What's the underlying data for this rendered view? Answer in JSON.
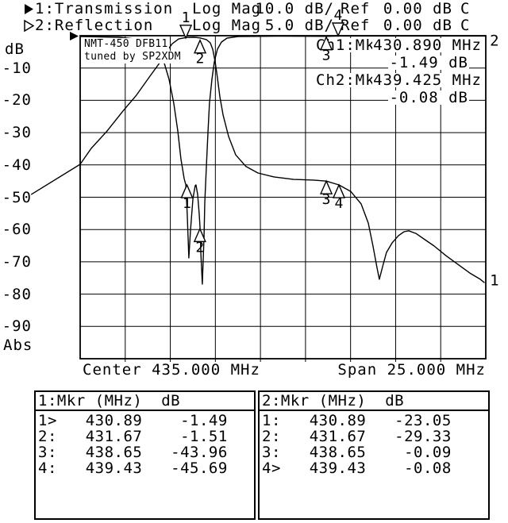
{
  "header": {
    "channels": [
      {
        "selector": "filled",
        "label": "1:Transmission",
        "format": "Log Mag",
        "scale": "10.0 dB/",
        "ref_label": "Ref",
        "ref_value": "0.00 dB",
        "cal": "C"
      },
      {
        "selector": "hollow",
        "label": "2:Reflection",
        "format": "Log Mag",
        "scale": "5.0 dB/",
        "ref_label": "Ref",
        "ref_value": "0.00 dB",
        "cal": "C"
      }
    ]
  },
  "plot": {
    "title_line1": "NMT-450 DFB11",
    "title_line2": "tuned by SP2XDM",
    "y_axis_unit": "dB",
    "y_axis_bottom_label": "Abs",
    "y_tick_labels": [
      "-10",
      "-20",
      "-30",
      "-40",
      "-50",
      "-60",
      "-70",
      "-80",
      "-90"
    ],
    "x_axis_left_label": "Center 435.000 MHz",
    "x_axis_right_label": "Span 25.000 MHz",
    "readout": {
      "rows": [
        {
          "channel": "Ch1:",
          "marker": "Mkr1",
          "frequency": "430.890 MHz",
          "value": "-1.49 dB"
        },
        {
          "channel": "Ch2:",
          "marker": "Mkr4",
          "frequency": "439.425 MHz",
          "value": "-0.08 dB"
        }
      ]
    }
  },
  "chart_data": {
    "type": "line",
    "title": "NMT-450 DFB11 tuned by SP2XDM",
    "xlabel": "Frequency (MHz), Center 435.000 MHz, Span 25.000 MHz",
    "ylabel": "dB (Ch1: 10.0 dB/div ref 0.00 dB, Ch2: 5.0 dB/div ref 0.00 dB)",
    "x_axis": {
      "center_MHz": 435.0,
      "span_MHz": 25.0,
      "min": 422.5,
      "max": 447.5
    },
    "y_axis": {
      "ch1": {
        "scale_db_per_div": 10,
        "ref_db": 0,
        "min": -100,
        "max": 0
      },
      "ch2": {
        "scale_db_per_div": 5,
        "ref_db": 0,
        "min": -50,
        "max": 0
      }
    },
    "grid": {
      "x_divisions": 9,
      "y_divisions": 10,
      "grid_on": true
    },
    "series": [
      {
        "name": "Transmission",
        "channel": 1,
        "points": [
          [
            419.5,
            -49.1
          ],
          [
            422.5,
            -39.8
          ],
          [
            423.18,
            -34.9
          ],
          [
            424.16,
            -29.5
          ],
          [
            425.14,
            -23.3
          ],
          [
            425.97,
            -18.4
          ],
          [
            426.76,
            -12.8
          ],
          [
            427.44,
            -8.1
          ],
          [
            427.83,
            -4.9
          ],
          [
            428.17,
            -2.5
          ],
          [
            428.57,
            -1.0
          ],
          [
            429.05,
            -0.55
          ],
          [
            429.54,
            -0.5
          ],
          [
            429.89,
            -0.7
          ],
          [
            430.28,
            -1.2
          ],
          [
            430.52,
            -2.2
          ],
          [
            430.67,
            -4.2
          ],
          [
            430.82,
            -8.1
          ],
          [
            430.96,
            -13.0
          ],
          [
            431.11,
            -18.9
          ],
          [
            431.31,
            -24.6
          ],
          [
            431.65,
            -31.2
          ],
          [
            432.09,
            -36.9
          ],
          [
            432.72,
            -40.5
          ],
          [
            433.46,
            -42.5
          ],
          [
            434.44,
            -43.7
          ],
          [
            435.66,
            -44.5
          ],
          [
            436.88,
            -44.7
          ],
          [
            437.67,
            -45.0
          ],
          [
            438.45,
            -46.2
          ],
          [
            439.18,
            -48.2
          ],
          [
            439.82,
            -52.1
          ],
          [
            440.26,
            -58.0
          ],
          [
            440.55,
            -65.1
          ],
          [
            440.8,
            -72.0
          ],
          [
            440.94,
            -75.4
          ],
          [
            441.14,
            -71.5
          ],
          [
            441.38,
            -67.1
          ],
          [
            441.73,
            -64.1
          ],
          [
            442.12,
            -61.9
          ],
          [
            442.46,
            -60.7
          ],
          [
            442.75,
            -60.4
          ],
          [
            443.19,
            -61.2
          ],
          [
            443.68,
            -62.9
          ],
          [
            444.32,
            -65.1
          ],
          [
            445.05,
            -68.1
          ],
          [
            445.79,
            -70.8
          ],
          [
            446.52,
            -73.5
          ],
          [
            447.16,
            -75.4
          ],
          [
            447.4,
            -76.4
          ]
        ]
      },
      {
        "name": "Reflection",
        "channel": 2,
        "points": [
          [
            422.5,
            -0.12
          ],
          [
            424.9,
            -0.25
          ],
          [
            426.36,
            -0.61
          ],
          [
            426.95,
            -1.35
          ],
          [
            427.34,
            -2.58
          ],
          [
            427.69,
            -4.3
          ],
          [
            427.98,
            -6.76
          ],
          [
            428.27,
            -10.44
          ],
          [
            428.52,
            -14.74
          ],
          [
            428.71,
            -19.04
          ],
          [
            428.91,
            -22.11
          ],
          [
            429.01,
            -23.1
          ],
          [
            429.1,
            -27.64
          ],
          [
            429.2,
            -34.4
          ],
          [
            429.3,
            -30.1
          ],
          [
            429.45,
            -25.18
          ],
          [
            429.59,
            -23.22
          ],
          [
            429.64,
            -23.1
          ],
          [
            429.74,
            -24.57
          ],
          [
            429.84,
            -27.64
          ],
          [
            429.89,
            -29.85
          ],
          [
            429.94,
            -33.78
          ],
          [
            430.03,
            -38.45
          ],
          [
            430.08,
            -35.01
          ],
          [
            430.13,
            -31.33
          ],
          [
            430.18,
            -25.8
          ],
          [
            430.28,
            -20.27
          ],
          [
            430.38,
            -14.74
          ],
          [
            430.47,
            -10.44
          ],
          [
            430.62,
            -6.76
          ],
          [
            430.77,
            -4.05
          ],
          [
            430.96,
            -2.09
          ],
          [
            431.21,
            -0.98
          ],
          [
            431.55,
            -0.37
          ],
          [
            432.23,
            -0.12
          ],
          [
            434.68,
            -0.06
          ],
          [
            437.67,
            -0.1
          ],
          [
            438.45,
            -0.05
          ],
          [
            442.02,
            -0.05
          ],
          [
            447.5,
            -0.05
          ]
        ]
      }
    ],
    "markers": [
      {
        "channel": 1,
        "num": "1",
        "dir": "down",
        "MHz": 429.01,
        "dB": -0.7
      },
      {
        "channel": 1,
        "num": "2",
        "dir": "up",
        "MHz": 429.89,
        "dB": -1.4
      },
      {
        "channel": 1,
        "num": "3",
        "dir": "up",
        "MHz": 437.67,
        "dB": -45.0
      },
      {
        "channel": 1,
        "num": "4",
        "dir": "up",
        "MHz": 438.45,
        "dB": -46.2
      },
      {
        "channel": 2,
        "num": "1",
        "dir": "up",
        "MHz": 429.08,
        "dB": -23.1
      },
      {
        "channel": 2,
        "num": "2",
        "dir": "up",
        "MHz": 429.88,
        "dB": -29.9
      },
      {
        "channel": 2,
        "num": "3",
        "dir": "up",
        "MHz": 437.67,
        "dB": -0.2
      },
      {
        "channel": 2,
        "num": "4",
        "dir": "down",
        "MHz": 438.4,
        "dB": 0.0
      }
    ],
    "trace_end_labels": [
      {
        "text": "1",
        "channel": 1,
        "MHz": 447.75,
        "dB": -76.0
      },
      {
        "text": "2",
        "channel": 2,
        "MHz": 447.75,
        "dB": -0.9
      }
    ],
    "legend": [
      "1:Transmission",
      "2:Reflection"
    ]
  },
  "tables": [
    {
      "header": {
        "col1": "1:Mkr (MHz)",
        "col2": "dB"
      },
      "rows": [
        {
          "n": "1>",
          "freq": "430.89",
          "db": "-1.49"
        },
        {
          "n": "2:",
          "freq": "431.67",
          "db": "-1.51"
        },
        {
          "n": "3:",
          "freq": "438.65",
          "db": "-43.96"
        },
        {
          "n": "4:",
          "freq": "439.43",
          "db": "-45.69"
        }
      ]
    },
    {
      "header": {
        "col1": "2:Mkr (MHz)",
        "col2": "dB"
      },
      "rows": [
        {
          "n": "1:",
          "freq": "430.89",
          "db": "-23.05"
        },
        {
          "n": "2:",
          "freq": "431.67",
          "db": "-29.33"
        },
        {
          "n": "3:",
          "freq": "438.65",
          "db": "-0.09"
        },
        {
          "n": "4>",
          "freq": "439.43",
          "db": "-0.08"
        }
      ]
    }
  ]
}
